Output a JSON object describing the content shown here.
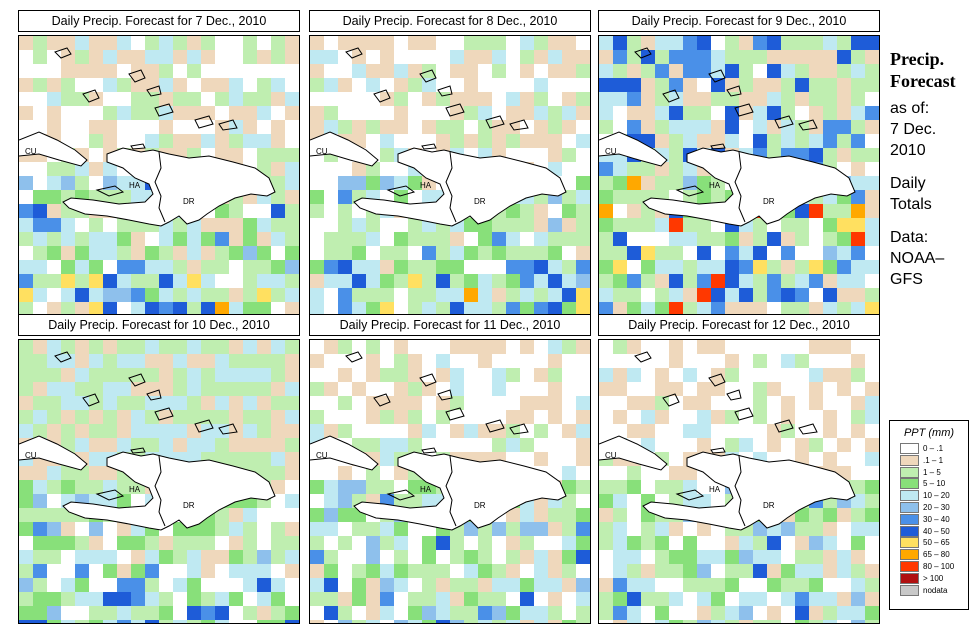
{
  "panels": [
    {
      "title": "Daily Precip. Forecast for  7 Dec., 2010",
      "date": "2010-12-07",
      "seed": 7,
      "bottom_intensity": 3,
      "top_green": 0.3
    },
    {
      "title": "Daily Precip. Forecast for  8 Dec., 2010",
      "date": "2010-12-08",
      "seed": 8,
      "bottom_intensity": 3,
      "top_green": 0.35
    },
    {
      "title": "Daily Precip. Forecast for  9 Dec., 2010",
      "date": "2010-12-09",
      "seed": 9,
      "bottom_intensity": 5,
      "top_green": 0.6
    },
    {
      "title": "Daily Precip. Forecast for  10 Dec., 2010",
      "date": "2010-12-10",
      "seed": 10,
      "bottom_intensity": 2,
      "top_green": 0.7
    },
    {
      "title": "Daily Precip. Forecast for  11 Dec., 2010",
      "date": "2010-12-11",
      "seed": 11,
      "bottom_intensity": 1,
      "top_green": 0.25
    },
    {
      "title": "Daily Precip. Forecast for  12 Dec., 2010",
      "date": "2010-12-12",
      "seed": 12,
      "bottom_intensity": 1,
      "top_green": 0.15
    }
  ],
  "map_labels": {
    "cuba": "CU",
    "haiti": "HA",
    "dominican_republic": "DR"
  },
  "sidebar": {
    "heading1": "Precip.",
    "heading2": "Forecast",
    "asof1": "as of:",
    "asof2": "7 Dec.",
    "asof3": "2010",
    "daily1": "Daily",
    "daily2": "Totals",
    "data1": "Data:",
    "data2": "NOAA–",
    "data3": "GFS"
  },
  "legend": {
    "title": "PPT (mm)",
    "items": [
      {
        "label": "0 – .1",
        "color": "#ffffff"
      },
      {
        "label": ".1 – 1",
        "color": "#efd8bc"
      },
      {
        "label": "1 – 5",
        "color": "#bfeeb0"
      },
      {
        "label": "5 – 10",
        "color": "#88e07a"
      },
      {
        "label": "10 – 20",
        "color": "#bfe9f2"
      },
      {
        "label": "20 – 30",
        "color": "#8ec0ec"
      },
      {
        "label": "30 – 40",
        "color": "#4a90e8"
      },
      {
        "label": "40 – 50",
        "color": "#1e5cd8"
      },
      {
        "label": "50 – 65",
        "color": "#ffe060"
      },
      {
        "label": "65 – 80",
        "color": "#ffa800"
      },
      {
        "label": "80 – 100",
        "color": "#ff3800"
      },
      {
        "label": "> 100",
        "color": "#b01010"
      },
      {
        "label": "nodata",
        "color": "#c8c8c8"
      }
    ]
  }
}
